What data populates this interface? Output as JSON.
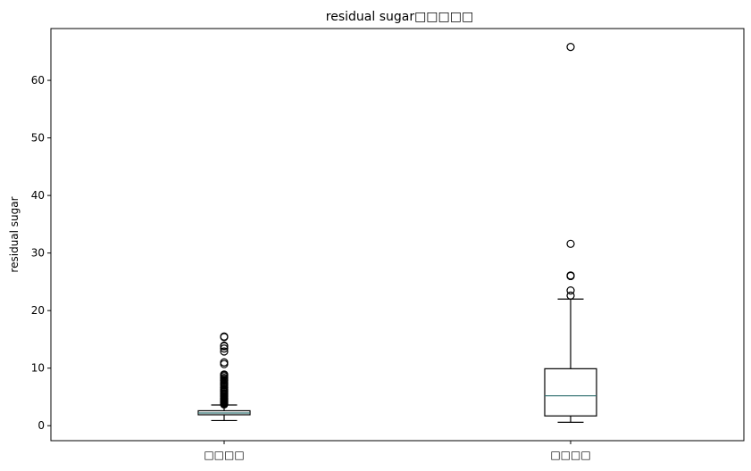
{
  "chart_data": {
    "type": "box",
    "title": "residual sugar□□□□□",
    "xlabel": "",
    "ylabel": "residual sugar",
    "ylim": [
      -2.6,
      69.0
    ],
    "yticks": [
      0,
      10,
      20,
      30,
      40,
      50,
      60
    ],
    "grid": false,
    "categories": [
      "□□□□",
      "□□□□"
    ],
    "boxes": [
      {
        "name": "□□□□",
        "whisker_low": 0.9,
        "q1": 1.9,
        "median": 2.2,
        "q3": 2.6,
        "whisker_high": 3.6,
        "outliers": [
          3.7,
          3.8,
          3.9,
          4.0,
          4.1,
          4.2,
          4.3,
          4.4,
          4.5,
          4.6,
          4.7,
          4.8,
          5.0,
          5.1,
          5.2,
          5.4,
          5.5,
          5.6,
          5.8,
          5.9,
          6.0,
          6.1,
          6.2,
          6.3,
          6.4,
          6.6,
          6.7,
          7.0,
          7.2,
          7.3,
          7.5,
          7.8,
          7.9,
          8.1,
          8.3,
          8.6,
          8.8,
          8.9,
          10.7,
          11.0,
          12.9,
          13.4,
          13.8,
          13.9,
          15.4,
          15.5
        ]
      },
      {
        "name": "□□□□",
        "whisker_low": 0.6,
        "q1": 1.7,
        "median": 5.2,
        "q3": 9.9,
        "whisker_high": 22.0,
        "outliers": [
          22.6,
          23.5,
          26.0,
          26.1,
          31.6,
          65.8
        ]
      }
    ],
    "colors": {
      "box": "#000000",
      "median": "#2f6f6f",
      "axis": "#000000",
      "background": "#ffffff"
    }
  }
}
